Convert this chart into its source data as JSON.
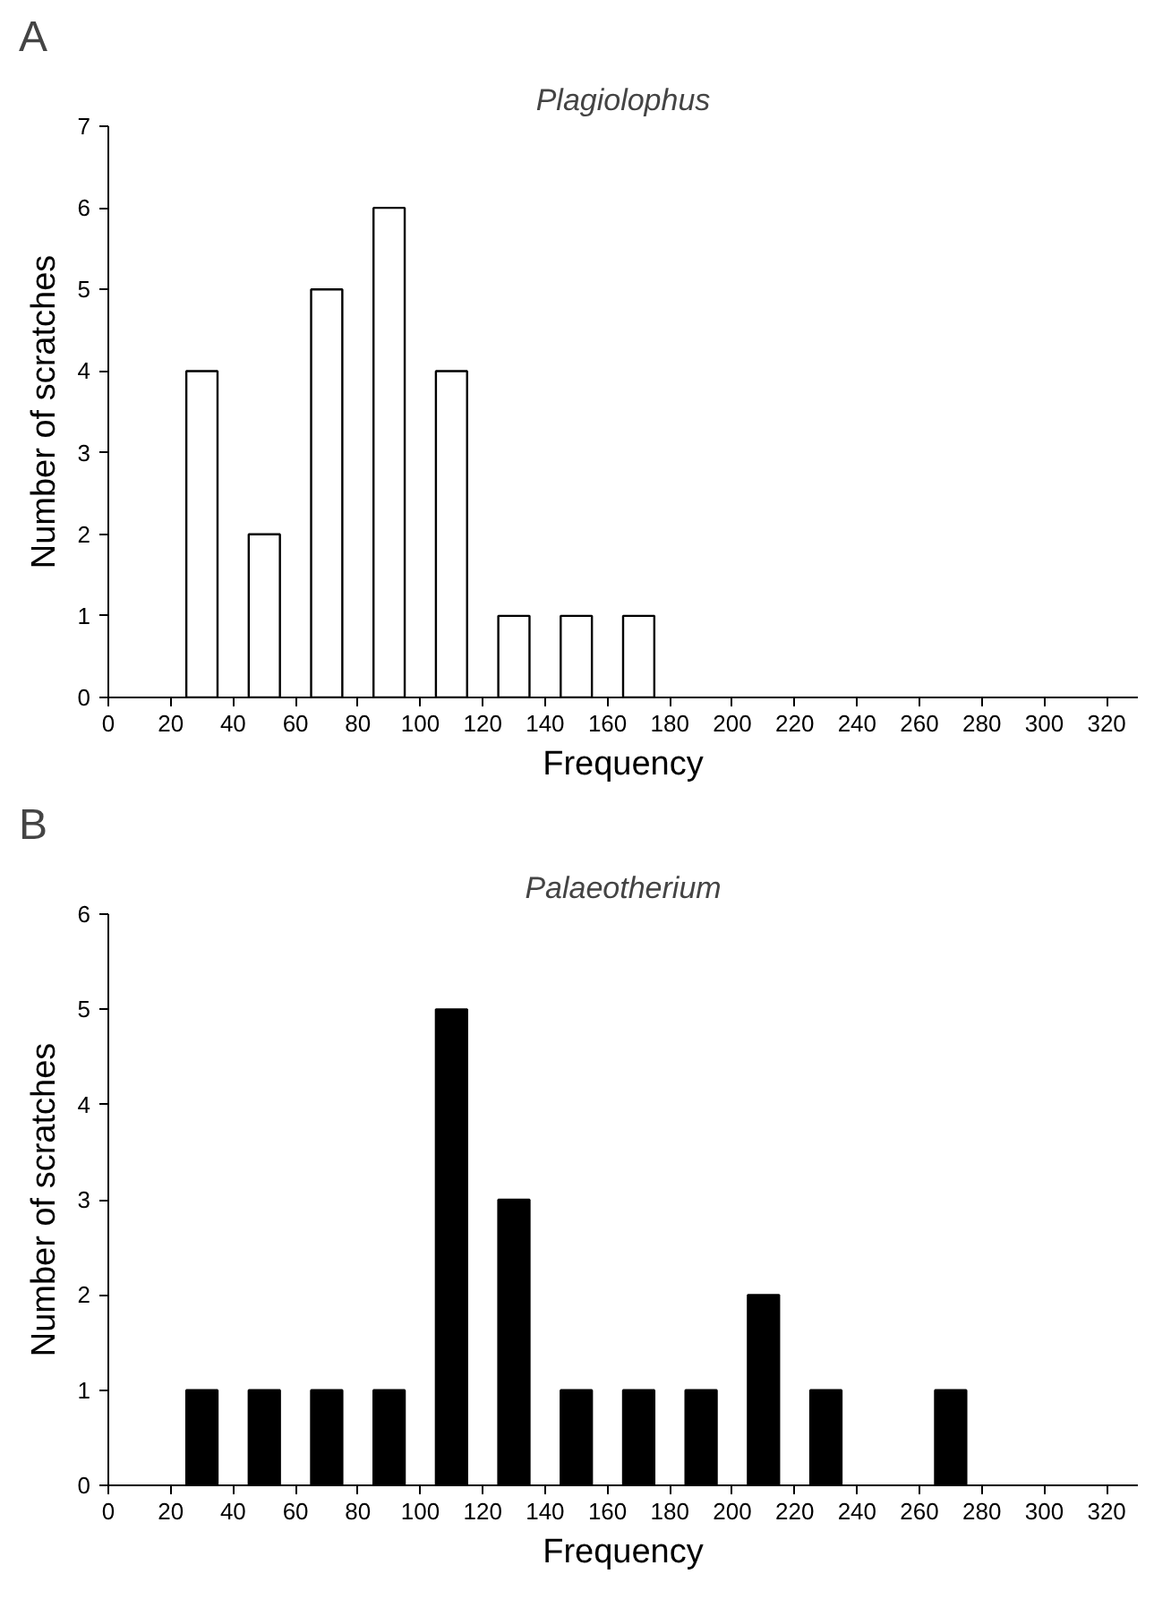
{
  "chart_data": [
    {
      "type": "bar",
      "title": "Plagiolophus",
      "annotations": [
        "A"
      ],
      "xlabel": "Frequency",
      "ylabel": "Number of scratches",
      "x": [
        30,
        50,
        70,
        90,
        110,
        130,
        150,
        170
      ],
      "series": [
        {
          "color": "#ffffff",
          "values": [
            4,
            2,
            5,
            6,
            4,
            1,
            1,
            1
          ]
        }
      ],
      "xlim": [
        0,
        330
      ],
      "xticks": [
        0,
        20,
        40,
        60,
        80,
        100,
        120,
        140,
        160,
        180,
        200,
        220,
        240,
        260,
        280,
        300,
        320
      ],
      "ylim": [
        0,
        7
      ],
      "yticks": [
        0,
        1,
        2,
        3,
        4,
        5,
        6,
        7
      ],
      "grid": false
    },
    {
      "type": "bar",
      "title": "Palaeotherium",
      "annotations": [
        "B"
      ],
      "xlabel": "Frequency",
      "ylabel": "Number of scratches",
      "x": [
        30,
        50,
        70,
        90,
        110,
        130,
        150,
        170,
        190,
        210,
        230,
        270
      ],
      "series": [
        {
          "color": "#000000",
          "values": [
            1,
            1,
            1,
            1,
            5,
            3,
            1,
            1,
            1,
            2,
            1,
            1
          ]
        }
      ],
      "xlim": [
        0,
        330
      ],
      "xticks": [
        0,
        20,
        40,
        60,
        80,
        100,
        120,
        140,
        160,
        180,
        200,
        220,
        240,
        260,
        280,
        300,
        320
      ],
      "ylim": [
        0,
        6
      ],
      "yticks": [
        0,
        1,
        2,
        3,
        4,
        5,
        6
      ],
      "grid": false
    }
  ]
}
